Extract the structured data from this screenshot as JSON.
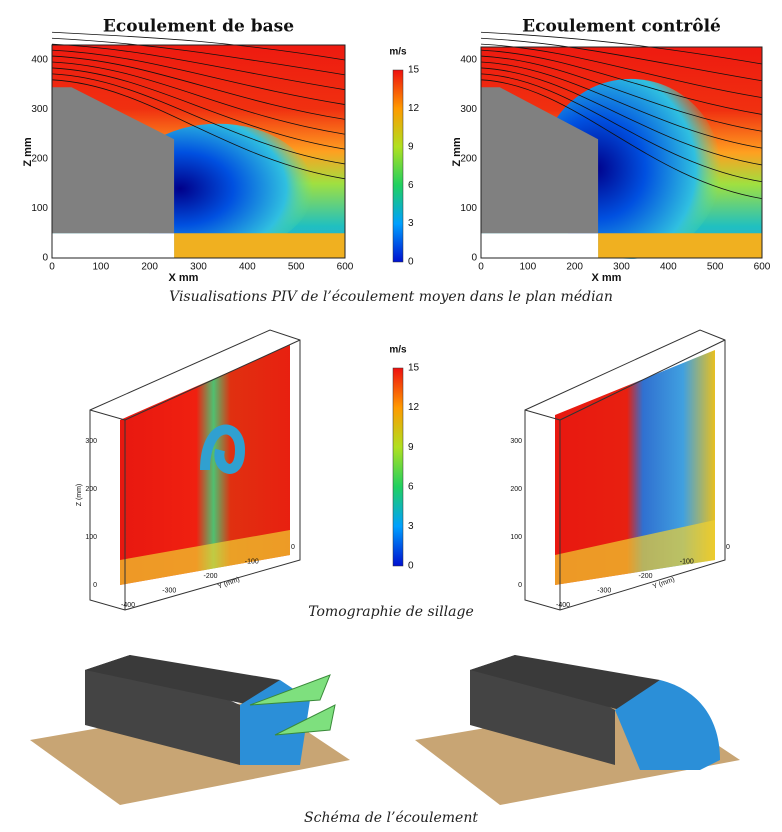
{
  "piv": {
    "panels": [
      {
        "title": "Ecoulement de base"
      },
      {
        "title": "Ecoulement contrôlé"
      }
    ],
    "x_label": "X mm",
    "y_label": "Z mm",
    "x_ticks": [
      0,
      100,
      200,
      300,
      400,
      500,
      600
    ],
    "y_ticks": [
      0,
      100,
      200,
      300,
      400
    ],
    "caption": "Visualisations  PIV de l’écoulement moyen dans le plan médian"
  },
  "colorbar": {
    "unit": "m/s",
    "ticks": [
      0,
      3,
      6,
      9,
      12,
      15
    ]
  },
  "tomography": {
    "z_label": "Z (mm)",
    "y_label": "Y (mm)",
    "z_ticks": [
      0,
      100,
      200,
      300
    ],
    "y_ticks": [
      -400,
      -300,
      -200,
      -100,
      0
    ],
    "caption": "Tomographie de sillage"
  },
  "schema": {
    "caption": "Schéma de l’écoulement"
  }
}
